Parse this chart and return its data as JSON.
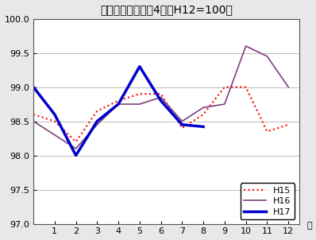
{
  "title": "総合指数の動き　4市（H12=100）",
  "xlabel": "月",
  "ylim": [
    97.0,
    100.0
  ],
  "yticks": [
    97.0,
    97.5,
    98.0,
    98.5,
    99.0,
    99.5,
    100.0
  ],
  "xticks": [
    1,
    2,
    3,
    4,
    5,
    6,
    7,
    8,
    9,
    10,
    11,
    12
  ],
  "xlim": [
    0,
    12.5
  ],
  "H15": {
    "x": [
      0,
      1,
      2,
      3,
      4,
      5,
      6,
      7,
      8,
      9,
      10,
      11,
      12
    ],
    "y": [
      98.6,
      98.5,
      98.2,
      98.65,
      98.8,
      98.9,
      98.9,
      98.4,
      98.6,
      99.0,
      99.0,
      98.35,
      98.45
    ],
    "color": "red",
    "linestyle": "dotted",
    "linewidth": 1.5,
    "label": "H15"
  },
  "H16": {
    "x": [
      0,
      1,
      2,
      3,
      4,
      5,
      6,
      7,
      8,
      9,
      10,
      11,
      12
    ],
    "y": [
      98.5,
      98.3,
      98.1,
      98.45,
      98.75,
      98.75,
      98.85,
      98.5,
      98.7,
      98.75,
      99.6,
      99.45,
      99.0
    ],
    "color": "#7b3f7b",
    "linestyle": "solid",
    "linewidth": 1.2,
    "label": "H16"
  },
  "H17": {
    "x": [
      0,
      1,
      2,
      3,
      4,
      5,
      6,
      7,
      8
    ],
    "y": [
      99.0,
      98.6,
      98.0,
      98.5,
      98.75,
      99.3,
      98.8,
      98.45,
      98.42
    ],
    "color": "#0000cc",
    "linestyle": "solid",
    "linewidth": 2.5,
    "label": "H17"
  },
  "bg_color": "#e8e8e8",
  "plot_bg": "#ffffff",
  "grid_color": "#bbbbbb",
  "title_fontsize": 10,
  "tick_fontsize": 8,
  "legend_fontsize": 8
}
